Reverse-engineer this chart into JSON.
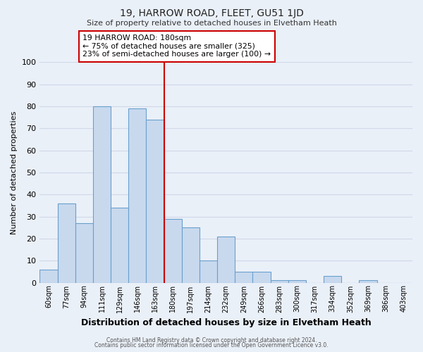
{
  "title": "19, HARROW ROAD, FLEET, GU51 1JD",
  "subtitle": "Size of property relative to detached houses in Elvetham Heath",
  "xlabel": "Distribution of detached houses by size in Elvetham Heath",
  "ylabel": "Number of detached properties",
  "bar_labels": [
    "60sqm",
    "77sqm",
    "94sqm",
    "111sqm",
    "129sqm",
    "146sqm",
    "163sqm",
    "180sqm",
    "197sqm",
    "214sqm",
    "232sqm",
    "249sqm",
    "266sqm",
    "283sqm",
    "300sqm",
    "317sqm",
    "334sqm",
    "352sqm",
    "369sqm",
    "386sqm",
    "403sqm"
  ],
  "bar_values": [
    6,
    36,
    27,
    80,
    34,
    79,
    74,
    29,
    25,
    10,
    21,
    5,
    5,
    1,
    1,
    0,
    3,
    0,
    1,
    0,
    0
  ],
  "bar_color": "#c8d9ee",
  "bar_edge_color": "#6aa0cc",
  "ref_line_color": "#cc0000",
  "annotation_title": "19 HARROW ROAD: 180sqm",
  "annotation_line1": "← 75% of detached houses are smaller (325)",
  "annotation_line2": "23% of semi-detached houses are larger (100) →",
  "annotation_box_edge_color": "#cc0000",
  "annotation_bg_color": "#ffffff",
  "ylim": [
    0,
    100
  ],
  "yticks": [
    0,
    10,
    20,
    30,
    40,
    50,
    60,
    70,
    80,
    90,
    100
  ],
  "grid_color": "#d0d8e8",
  "background_color": "#eaf0f8",
  "footer1": "Contains HM Land Registry data © Crown copyright and database right 2024.",
  "footer2": "Contains public sector information licensed under the Open Government Licence v3.0."
}
